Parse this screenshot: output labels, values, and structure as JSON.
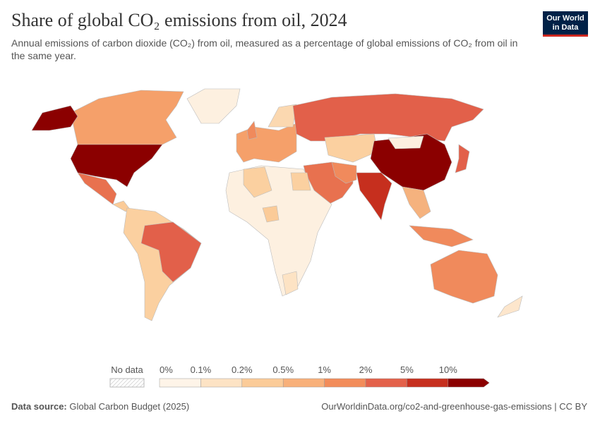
{
  "header": {
    "title": "Share of global CO₂ emissions from oil, 2024",
    "subtitle": "Annual emissions of carbon dioxide (CO₂) from oil, measured as a percentage of global emissions of CO₂ from oil in the same year.",
    "logo": [
      "Our World",
      "in Data"
    ]
  },
  "legend": {
    "no_data": "No data",
    "labels": [
      "0%",
      "0.1%",
      "0.2%",
      "0.5%",
      "1%",
      "2%",
      "5%",
      "10%"
    ],
    "colors": [
      "#fef4e8",
      "#fde3c4",
      "#fbcb98",
      "#f8b07a",
      "#f28c5a",
      "#e3614a",
      "#c62f1e",
      "#8b0000"
    ]
  },
  "footer": {
    "source_label": "Data source:",
    "source": "Global Carbon Budget (2025)",
    "link": "OurWorldinData.org/co2-and-greenhouse-gas-emissions | CC BY"
  }
}
